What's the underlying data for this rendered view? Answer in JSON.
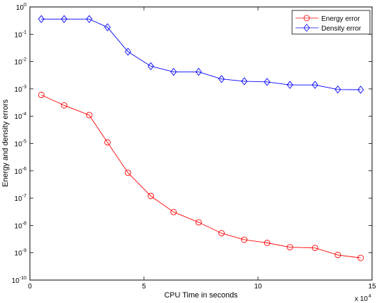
{
  "chart_data": {
    "type": "line",
    "title": "",
    "xlabel": "CPU Time in seconds",
    "ylabel": "Energy and density errors",
    "x_multiplier_label": "x 10",
    "x_multiplier_exponent": "4",
    "xlim": [
      0,
      150000
    ],
    "ylim": [
      1e-10,
      1
    ],
    "yscale": "log",
    "grid": false,
    "legend_position": "top-right",
    "x_tick_values": [
      0,
      50000,
      100000,
      150000
    ],
    "x_tick_labels": [
      "0",
      "5",
      "10",
      "15"
    ],
    "y_tick_values": [
      1e-10,
      1e-09,
      1e-08,
      1e-07,
      1e-06,
      1e-05,
      0.0001,
      0.001,
      0.01,
      0.1,
      1
    ],
    "y_tick_exponents": [
      "-10",
      "-9",
      "-8",
      "-7",
      "-6",
      "-5",
      "-4",
      "-3",
      "-2",
      "-1",
      "0"
    ],
    "y_tick_base": "10",
    "series": [
      {
        "name": "Energy error",
        "color": "#ff0000",
        "marker": "circle",
        "x": [
          5000,
          15000,
          26000,
          34000,
          43000,
          53000,
          63000,
          74000,
          84000,
          94000,
          104000,
          114000,
          125000,
          135000,
          145000
        ],
        "values": [
          0.0006,
          0.00025,
          0.00011,
          1.1e-05,
          8.5e-07,
          1.2e-07,
          3.1e-08,
          1.3e-08,
          5.2e-09,
          3e-09,
          2.3e-09,
          1.6e-09,
          1.5e-09,
          8.3e-10,
          6.5e-10
        ]
      },
      {
        "name": "Density error",
        "color": "#0000ff",
        "marker": "diamond",
        "x": [
          5000,
          15000,
          26000,
          34000,
          43000,
          53000,
          63000,
          74000,
          84000,
          94000,
          104000,
          114000,
          125000,
          135000,
          145000
        ],
        "values": [
          0.36,
          0.36,
          0.36,
          0.18,
          0.023,
          0.0068,
          0.0042,
          0.0042,
          0.0023,
          0.0019,
          0.0018,
          0.0014,
          0.0014,
          0.00095,
          0.00093
        ]
      }
    ]
  }
}
